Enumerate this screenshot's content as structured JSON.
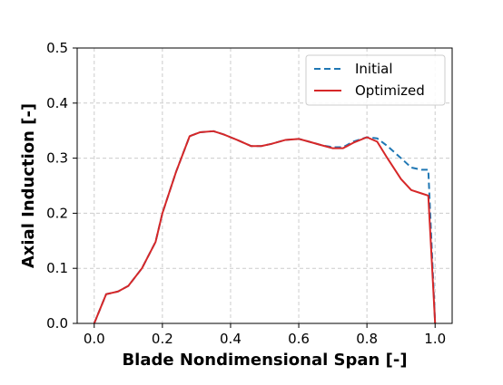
{
  "chart_data": {
    "type": "line",
    "title": "",
    "xlabel": "Blade Nondimensional Span [-]",
    "ylabel": "Axial Induction [-]",
    "xlim": [
      -0.05,
      1.05
    ],
    "ylim": [
      0.0,
      0.5
    ],
    "xticks": [
      "0.0",
      "0.2",
      "0.4",
      "0.6",
      "0.8",
      "1.0"
    ],
    "yticks": [
      "0.0",
      "0.1",
      "0.2",
      "0.3",
      "0.4",
      "0.5"
    ],
    "grid": true,
    "legend_position": "top-right",
    "series": [
      {
        "name": "Initial",
        "color": "#1f77b4",
        "style": "dashed",
        "x": [
          0.0,
          0.035,
          0.07,
          0.1,
          0.14,
          0.18,
          0.2,
          0.24,
          0.28,
          0.31,
          0.35,
          0.38,
          0.42,
          0.46,
          0.49,
          0.52,
          0.56,
          0.6,
          0.63,
          0.67,
          0.7,
          0.73,
          0.76,
          0.8,
          0.83,
          0.86,
          0.9,
          0.93,
          0.96,
          0.98,
          1.0
        ],
        "y": [
          0.0,
          0.053,
          0.058,
          0.068,
          0.1,
          0.148,
          0.2,
          0.275,
          0.34,
          0.347,
          0.349,
          0.343,
          0.333,
          0.322,
          0.322,
          0.326,
          0.333,
          0.335,
          0.33,
          0.323,
          0.32,
          0.32,
          0.33,
          0.338,
          0.336,
          0.322,
          0.3,
          0.283,
          0.279,
          0.279,
          0.0
        ]
      },
      {
        "name": "Optimized",
        "color": "#d62728",
        "style": "solid",
        "x": [
          0.0,
          0.035,
          0.07,
          0.1,
          0.14,
          0.18,
          0.2,
          0.24,
          0.28,
          0.31,
          0.35,
          0.38,
          0.42,
          0.46,
          0.49,
          0.52,
          0.56,
          0.6,
          0.63,
          0.67,
          0.7,
          0.73,
          0.76,
          0.8,
          0.83,
          0.86,
          0.9,
          0.93,
          0.96,
          0.98,
          1.0
        ],
        "y": [
          0.0,
          0.053,
          0.058,
          0.068,
          0.1,
          0.148,
          0.2,
          0.275,
          0.34,
          0.347,
          0.349,
          0.343,
          0.333,
          0.322,
          0.322,
          0.326,
          0.333,
          0.335,
          0.33,
          0.323,
          0.318,
          0.318,
          0.328,
          0.338,
          0.33,
          0.3,
          0.262,
          0.242,
          0.236,
          0.232,
          0.0
        ]
      }
    ]
  }
}
